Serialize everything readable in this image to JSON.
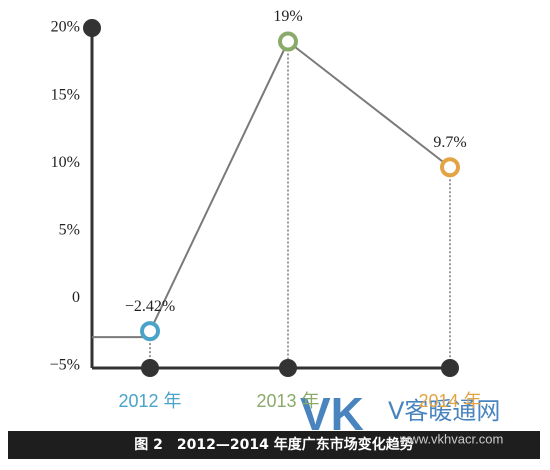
{
  "chart_data": {
    "type": "line",
    "title": "图 2　2012—2014 年度广东市场变化趋势",
    "categories": [
      "2012 年",
      "2013 年",
      "2014 年"
    ],
    "values": [
      -2.42,
      19,
      9.7
    ],
    "value_labels": [
      "−2.42%",
      "19%",
      "9.7%"
    ],
    "point_colors": [
      "#4aa3c8",
      "#8aaa6a",
      "#e2a444"
    ],
    "color": "#7a7a7a",
    "ylim": [
      -5,
      20
    ],
    "yticks": [
      {
        "value": -5,
        "label": "−5%"
      },
      0,
      {
        "value": 5,
        "label": "5%"
      },
      {
        "value": 10,
        "label": "10%"
      },
      {
        "value": 15,
        "label": "15%"
      },
      {
        "value": 20,
        "label": "20%"
      }
    ],
    "watermark": [
      "VK",
      "V客暖通网",
      "www.vkhvacr.com"
    ]
  }
}
